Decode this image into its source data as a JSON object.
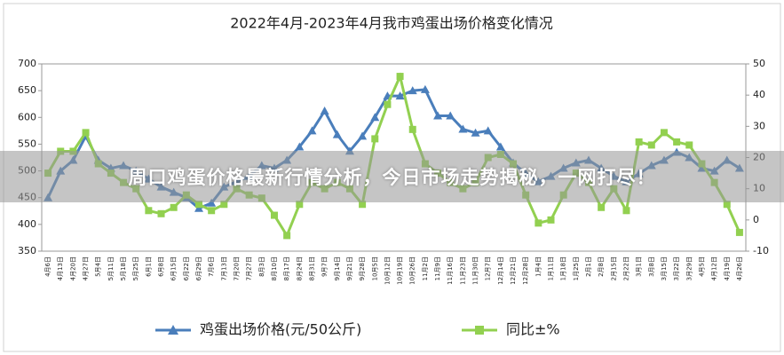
{
  "chart_data": {
    "type": "line",
    "title": "2022年4月-2023年4月我市鸡蛋出场价格变化情况",
    "categories": [
      "4月6日",
      "4月13日",
      "4月20日",
      "4月27日",
      "5月4日",
      "5月11日",
      "5月18日",
      "5月25日",
      "6月1日",
      "6月8日",
      "6月15日",
      "6月22日",
      "6月29日",
      "7月6日",
      "7月13日",
      "7月20日",
      "7月27日",
      "8月3日",
      "8月10日",
      "8月17日",
      "8月24日",
      "8月31日",
      "9月7日",
      "9月14日",
      "9月21日",
      "9月28日",
      "10月5日",
      "10月12日",
      "10月19日",
      "10月26日",
      "11月2日",
      "11月9日",
      "11月16日",
      "11月23日",
      "11月30日",
      "12月7日",
      "12月14日",
      "12月21日",
      "12月28日",
      "1月4日",
      "1月11日",
      "1月18日",
      "1月25日",
      "2月1日",
      "2月8日",
      "2月15日",
      "2月22日",
      "3月1日",
      "3月8日",
      "3月15日",
      "3月22日",
      "3月29日",
      "4月5日",
      "4月12日",
      "4月19日",
      "4月26日"
    ],
    "series": [
      {
        "name": "鸡蛋出场价格(元/50公斤)",
        "color": "#4a7ebb",
        "marker": "triangle",
        "values": [
          450,
          500,
          520,
          565,
          520,
          505,
          510,
          500,
          485,
          470,
          460,
          450,
          430,
          440,
          470,
          480,
          490,
          510,
          505,
          520,
          545,
          575,
          612,
          568,
          537,
          565,
          600,
          640,
          640,
          650,
          652,
          603,
          603,
          578,
          571,
          575,
          545,
          515,
          495,
          480,
          490,
          505,
          515,
          520,
          505,
          490,
          480,
          495,
          510,
          520,
          535,
          525,
          505,
          500,
          520,
          505
        ]
      },
      {
        "name": "同比±%",
        "color": "#92d050",
        "marker": "square",
        "axis": "y2",
        "values": [
          15,
          22,
          22,
          28,
          18,
          15,
          12,
          10,
          3,
          2,
          4,
          8,
          5,
          3,
          5,
          10,
          8,
          7,
          1.5,
          -5,
          5,
          12,
          10,
          12,
          10,
          5,
          26,
          37,
          46,
          29,
          18,
          15,
          12,
          10,
          12,
          20,
          21,
          18,
          8,
          -1,
          0,
          8,
          15,
          12,
          4,
          10,
          3,
          25,
          24,
          28,
          25,
          24,
          18,
          12,
          5,
          -4
        ]
      }
    ],
    "ylim": [
      350,
      700
    ],
    "yticks": [
      350,
      400,
      450,
      500,
      550,
      600,
      650,
      700
    ],
    "y2lim": [
      -10,
      50
    ],
    "y2ticks": [
      -10,
      0,
      10,
      20,
      30,
      40,
      50
    ],
    "grid": false,
    "legend": "bottom"
  },
  "banner": {
    "text": "周口鸡蛋价格最新行情分析，今日市场走势揭秘，一网打尽！"
  }
}
